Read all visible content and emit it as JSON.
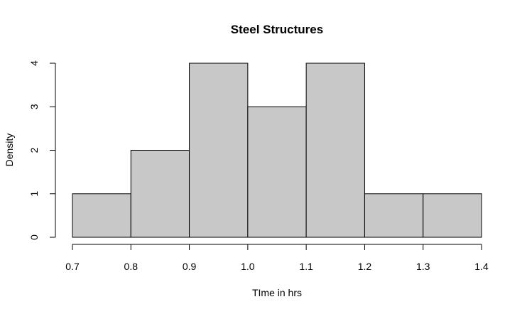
{
  "chart_data": {
    "type": "bar",
    "title": "Steel Structures",
    "xlabel": "TIme in hrs",
    "ylabel": "Density",
    "bins": [
      {
        "from": 0.7,
        "to": 0.8,
        "value": 1
      },
      {
        "from": 0.8,
        "to": 0.9,
        "value": 2
      },
      {
        "from": 0.9,
        "to": 1.0,
        "value": 4
      },
      {
        "from": 1.0,
        "to": 1.1,
        "value": 3
      },
      {
        "from": 1.1,
        "to": 1.2,
        "value": 4
      },
      {
        "from": 1.2,
        "to": 1.3,
        "value": 1
      },
      {
        "from": 1.3,
        "to": 1.4,
        "value": 1
      }
    ],
    "xlim": [
      0.7,
      1.4
    ],
    "ylim": [
      0,
      4
    ],
    "x_ticks": [
      "0.7",
      "0.8",
      "0.9",
      "1.0",
      "1.1",
      "1.2",
      "1.3",
      "1.4"
    ],
    "y_ticks": [
      "0",
      "1",
      "2",
      "3",
      "4"
    ],
    "grid": false,
    "bar_color": "#c8c8c8"
  }
}
